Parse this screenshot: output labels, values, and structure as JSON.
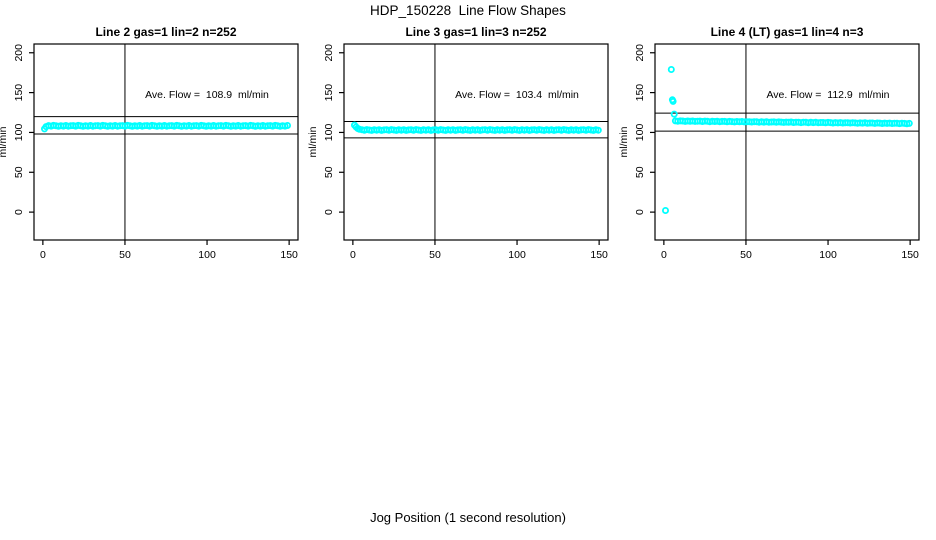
{
  "main_title": "HDP_150228  Line Flow Shapes",
  "x_axis_label": "Jog Position (1 second resolution)",
  "colors": {
    "points": "#00FFFF",
    "axis": "#000000",
    "ref_line": "#000000",
    "text": "#000000",
    "background": "#FFFFFF"
  },
  "chart_data": [
    {
      "type": "scatter",
      "title": "Line 2 gas=1 lin=2 n=252",
      "annotation": "Ave. Flow =  108.9  ml/min",
      "ave_flow": 108.9,
      "ylabel": "ml/min",
      "x_ticks": [
        0,
        50,
        100,
        150
      ],
      "y_ticks": [
        0,
        50,
        100,
        150,
        200
      ],
      "xlim": [
        -5.4,
        155.4
      ],
      "ylim": [
        -35,
        211
      ],
      "ref_lines": {
        "horizontal": [
          119.8,
          98.0
        ],
        "vertical": [
          50
        ]
      },
      "points": [
        [
          1,
          104.5
        ],
        [
          2,
          107.3
        ]
      ],
      "band": {
        "x0": 3.5,
        "dx": 1.5,
        "values": [
          108.6,
          107.9,
          108.8,
          108.3,
          107.7,
          108.5,
          108.0,
          108.7,
          107.8,
          108.4,
          108.6,
          107.9,
          108.8,
          108.3,
          107.7,
          108.5,
          108.0,
          108.7,
          107.8,
          108.4,
          108.6,
          107.9,
          108.8,
          108.3,
          107.7,
          108.5,
          108.0,
          108.7,
          107.8,
          108.4,
          108.6,
          107.9,
          108.8,
          108.3,
          107.7,
          108.5,
          108.0,
          108.7,
          107.8,
          108.4,
          108.6,
          107.9,
          108.8,
          108.3,
          107.7,
          108.5,
          108.0,
          108.7,
          107.8,
          108.4,
          108.6,
          107.9,
          108.8,
          108.3,
          107.7,
          108.5,
          108.0,
          108.7,
          107.8,
          108.4,
          108.6,
          107.9,
          108.8,
          108.3,
          107.7,
          108.5,
          108.0,
          108.7,
          107.8,
          108.4,
          108.6,
          107.9,
          108.8,
          108.3,
          107.7,
          108.5,
          108.0,
          108.7,
          107.8,
          108.4,
          108.6,
          107.9,
          108.8,
          108.3,
          107.7,
          108.5,
          108.0,
          108.7,
          107.8,
          108.4,
          108.6,
          107.9,
          108.8,
          108.3,
          107.7,
          108.5,
          108.0,
          108.7
        ]
      }
    },
    {
      "type": "scatter",
      "title": "Line 3 gas=1 lin=3 n=252",
      "annotation": "Ave. Flow =  103.4  ml/min",
      "ave_flow": 103.4,
      "ylabel": "ml/min",
      "x_ticks": [
        0,
        50,
        100,
        150
      ],
      "y_ticks": [
        0,
        50,
        100,
        150,
        200
      ],
      "xlim": [
        -5.4,
        155.4
      ],
      "ylim": [
        -35,
        211
      ],
      "ref_lines": {
        "horizontal": [
          113.7,
          93.1
        ],
        "vertical": [
          50
        ]
      },
      "points": [
        [
          1,
          109.2
        ],
        [
          2,
          106.8
        ],
        [
          3,
          104.9
        ],
        [
          4,
          103.9
        ]
      ],
      "band": {
        "x0": 5.5,
        "dx": 1.5,
        "values": [
          103.4,
          102.7,
          103.6,
          103.1,
          102.5,
          103.3,
          102.8,
          103.5,
          102.6,
          103.2,
          103.4,
          102.7,
          103.6,
          103.1,
          102.5,
          103.3,
          102.8,
          103.5,
          102.6,
          103.2,
          103.4,
          102.7,
          103.6,
          103.1,
          102.5,
          103.3,
          102.8,
          103.5,
          102.6,
          103.2,
          103.4,
          102.7,
          103.6,
          103.1,
          102.5,
          103.3,
          102.8,
          103.5,
          102.6,
          103.2,
          103.4,
          102.7,
          103.6,
          103.1,
          102.5,
          103.3,
          102.8,
          103.5,
          102.6,
          103.2,
          103.4,
          102.7,
          103.6,
          103.1,
          102.5,
          103.3,
          102.8,
          103.5,
          102.6,
          103.2,
          103.4,
          102.7,
          103.6,
          103.1,
          102.5,
          103.3,
          102.8,
          103.5,
          102.6,
          103.2,
          103.4,
          102.7,
          103.6,
          103.1,
          102.5,
          103.3,
          102.8,
          103.5,
          102.6,
          103.2,
          103.4,
          102.7,
          103.6,
          103.1,
          102.5,
          103.3,
          102.8,
          103.5,
          102.6,
          103.2,
          103.4,
          102.7,
          103.6,
          103.1,
          102.5,
          103.3,
          102.8
        ]
      }
    },
    {
      "type": "scatter",
      "title": "Line 4 (LT) gas=1 lin=4 n=3",
      "annotation": "Ave. Flow =  112.9  ml/min",
      "ave_flow": 112.9,
      "ylabel": "ml/min",
      "x_ticks": [
        0,
        50,
        100,
        150
      ],
      "y_ticks": [
        0,
        50,
        100,
        150,
        200
      ],
      "xlim": [
        -5.4,
        155.4
      ],
      "ylim": [
        -35,
        211
      ],
      "ref_lines": {
        "horizontal": [
          124.2,
          101.6
        ],
        "vertical": [
          50
        ]
      },
      "points": [
        [
          1,
          2
        ],
        [
          4.5,
          179
        ],
        [
          5.2,
          141
        ],
        [
          5.6,
          139
        ],
        [
          6.3,
          123
        ]
      ],
      "band": {
        "x0": 7,
        "dx": 1.5,
        "values": [
          114.5,
          114.1,
          114.5,
          114.3,
          113.9,
          114.3,
          114.0,
          114.4,
          113.8,
          114.1,
          114.2,
          113.7,
          114.2,
          114.0,
          113.5,
          114.0,
          113.7,
          114.0,
          113.5,
          113.8,
          113.8,
          113.4,
          113.9,
          113.6,
          113.2,
          113.7,
          113.3,
          113.7,
          113.2,
          113.4,
          113.5,
          113.1,
          113.5,
          113.3,
          112.9,
          113.3,
          113.0,
          113.4,
          112.9,
          113.1,
          113.2,
          112.8,
          113.2,
          113.0,
          112.6,
          113.0,
          112.7,
          113.1,
          112.5,
          112.8,
          112.9,
          112.4,
          112.9,
          112.7,
          112.2,
          112.7,
          112.3,
          112.7,
          112.2,
          112.5,
          112.5,
          112.1,
          112.6,
          112.3,
          111.9,
          112.4,
          112.0,
          112.4,
          111.9,
          112.1,
          112.2,
          111.8,
          112.2,
          112.0,
          111.6,
          112.0,
          111.7,
          112.1,
          111.5,
          111.8,
          111.9,
          111.4,
          111.9,
          111.7,
          111.2,
          111.7,
          111.4,
          111.7,
          111.2,
          111.5,
          111.5,
          111.1,
          111.6,
          111.3,
          110.9,
          111.4
        ]
      }
    }
  ]
}
